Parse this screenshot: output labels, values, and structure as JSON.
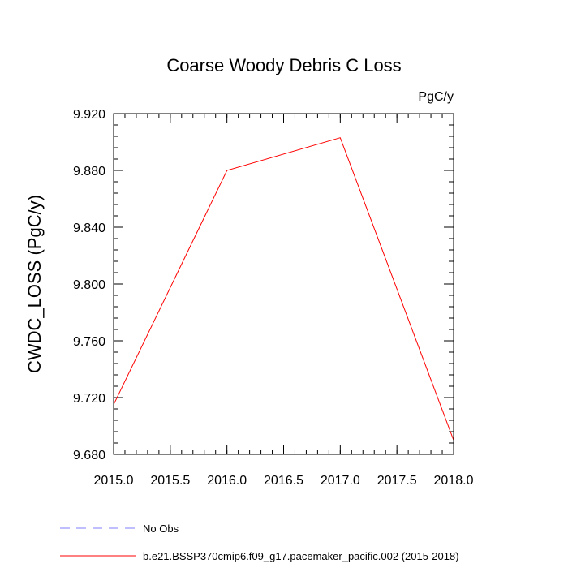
{
  "chart_data": {
    "type": "line",
    "title": "Coarse Woody Debris C Loss",
    "units": "PgC/y",
    "xlabel": "",
    "ylabel": "CWDC_LOSS  (PgC/y)",
    "xlim": [
      2015.0,
      2018.0
    ],
    "ylim": [
      9.68,
      9.92
    ],
    "x_ticks": [
      "2015.0",
      "2015.5",
      "2016.0",
      "2016.5",
      "2017.0",
      "2017.5",
      "2018.0"
    ],
    "y_ticks": [
      "9.680",
      "9.720",
      "9.760",
      "9.800",
      "9.840",
      "9.880",
      "9.920"
    ],
    "grid": false,
    "legend_position": "bottom",
    "series": [
      {
        "name": "No Obs",
        "color": "#7f7fff",
        "style": "dashed",
        "x": [],
        "y": []
      },
      {
        "name": "b.e21.BSSP370cmip6.f09_g17.pacemaker_pacific.002 (2015-2018)",
        "color": "#ff0000",
        "style": "solid",
        "x": [
          2015,
          2016,
          2017,
          2018
        ],
        "y": [
          9.715,
          9.88,
          9.903,
          9.69
        ]
      }
    ]
  }
}
